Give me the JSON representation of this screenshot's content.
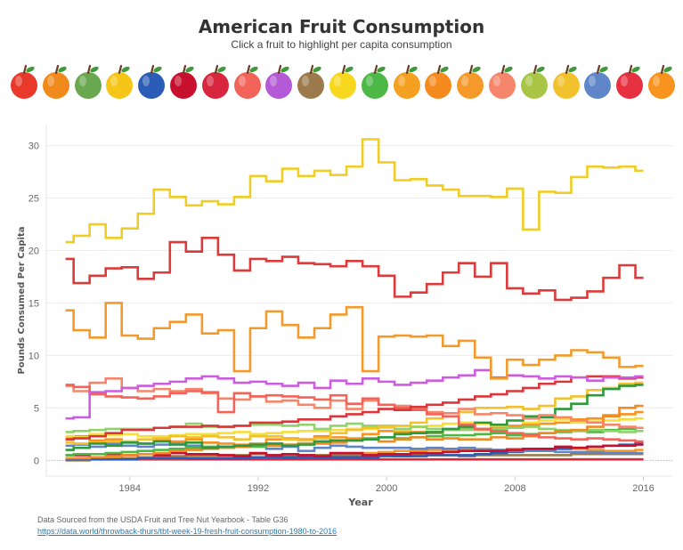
{
  "header": {
    "title": "American Fruit Consumption",
    "subtitle": "Click a fruit to highlight per capita consumption"
  },
  "fruits": [
    {
      "name": "apple-icon",
      "color": "#e8392b"
    },
    {
      "name": "apricot-icon",
      "color": "#f08a1c"
    },
    {
      "name": "avocado-icon",
      "color": "#6aa84f"
    },
    {
      "name": "banana-icon",
      "color": "#f5c518"
    },
    {
      "name": "blueberries-icon",
      "color": "#2b5db8"
    },
    {
      "name": "cherries-icon",
      "color": "#c8102e"
    },
    {
      "name": "cranberries-icon",
      "color": "#d7263d"
    },
    {
      "name": "grapefruit-icon",
      "color": "#f2645a"
    },
    {
      "name": "grapes-icon",
      "color": "#b45ad6"
    },
    {
      "name": "kiwi-icon",
      "color": "#9c7a4b"
    },
    {
      "name": "lemon-icon",
      "color": "#f7d81e"
    },
    {
      "name": "lime-icon",
      "color": "#4cb845"
    },
    {
      "name": "mango-icon",
      "color": "#f4a020"
    },
    {
      "name": "orange-icon",
      "color": "#f58b1f"
    },
    {
      "name": "papaya-icon",
      "color": "#f59a2a"
    },
    {
      "name": "peach-icon",
      "color": "#f5866b"
    },
    {
      "name": "pear-icon",
      "color": "#a8c545"
    },
    {
      "name": "pineapple-icon",
      "color": "#f2c12e"
    },
    {
      "name": "plum-icon",
      "color": "#5f86c9"
    },
    {
      "name": "strawberry-icon",
      "color": "#e83140"
    },
    {
      "name": "tangerine-icon",
      "color": "#f7931e"
    }
  ],
  "chart_data": {
    "type": "line",
    "step": true,
    "title": "American Fruit Consumption",
    "xlabel": "Year",
    "ylabel": "Pounds Consumed Per Capita",
    "xlim": [
      1978.8,
      2017.8
    ],
    "ylim": [
      -1.5,
      32
    ],
    "xticks": [
      1984,
      1992,
      2000,
      2008,
      2016
    ],
    "yticks": [
      0,
      5,
      10,
      15,
      20,
      25,
      30
    ],
    "x": [
      1980,
      1981,
      1982,
      1983,
      1984,
      1985,
      1986,
      1987,
      1988,
      1989,
      1990,
      1991,
      1992,
      1993,
      1994,
      1995,
      1996,
      1997,
      1998,
      1999,
      2000,
      2001,
      2002,
      2003,
      2004,
      2005,
      2006,
      2007,
      2008,
      2009,
      2010,
      2011,
      2012,
      2013,
      2014,
      2015,
      2016
    ],
    "series": [
      {
        "name": "Bananas",
        "color": "#f0cd25",
        "values": [
          20.8,
          21.4,
          22.5,
          21.2,
          22.1,
          23.5,
          25.8,
          25.1,
          24.3,
          24.7,
          24.4,
          25.1,
          27.1,
          26.6,
          27.8,
          27.1,
          27.6,
          27.2,
          28.0,
          30.6,
          28.4,
          26.7,
          26.8,
          26.2,
          25.8,
          25.2,
          25.2,
          25.1,
          25.9,
          22.0,
          25.6,
          25.5,
          27.0,
          28.0,
          27.9,
          28.0,
          27.6
        ]
      },
      {
        "name": "Apples",
        "color": "#dc3b3b",
        "values": [
          19.2,
          16.9,
          17.6,
          18.3,
          18.4,
          17.3,
          17.9,
          20.8,
          19.9,
          21.2,
          19.6,
          18.1,
          19.2,
          19.0,
          19.4,
          18.8,
          18.7,
          18.5,
          19.0,
          18.5,
          17.6,
          15.6,
          16.0,
          16.8,
          17.9,
          18.8,
          17.5,
          18.8,
          16.4,
          15.9,
          16.2,
          15.3,
          15.5,
          16.1,
          17.4,
          18.6,
          17.4
        ]
      },
      {
        "name": "Oranges",
        "color": "#f39a2b",
        "values": [
          14.3,
          12.4,
          11.7,
          15.0,
          11.9,
          11.6,
          12.6,
          13.2,
          13.9,
          12.1,
          12.4,
          8.5,
          12.6,
          14.2,
          12.9,
          11.7,
          12.6,
          13.9,
          14.6,
          8.5,
          11.8,
          11.9,
          11.8,
          11.9,
          10.9,
          11.4,
          9.8,
          7.8,
          9.6,
          9.1,
          9.6,
          10.0,
          10.5,
          10.3,
          9.8,
          8.9,
          9.0
        ]
      },
      {
        "name": "Grapes",
        "color": "#cc5de0",
        "values": [
          4.0,
          4.1,
          6.5,
          6.6,
          6.9,
          7.1,
          7.3,
          7.5,
          7.8,
          8.0,
          7.8,
          7.4,
          7.5,
          7.3,
          7.1,
          7.4,
          6.9,
          7.6,
          7.3,
          7.8,
          7.5,
          7.2,
          7.4,
          7.6,
          7.9,
          8.1,
          8.6,
          7.9,
          8.1,
          8.0,
          7.8,
          8.0,
          7.9,
          7.6,
          7.9,
          7.9,
          8.0
        ]
      },
      {
        "name": "Strawberries",
        "color": "#d9373c",
        "values": [
          2.0,
          2.1,
          2.3,
          2.6,
          2.9,
          2.9,
          3.1,
          3.2,
          3.2,
          3.3,
          3.2,
          3.3,
          3.6,
          3.6,
          3.7,
          3.9,
          3.9,
          4.2,
          4.4,
          4.6,
          4.9,
          4.8,
          5.1,
          5.3,
          5.5,
          5.8,
          6.1,
          6.3,
          6.6,
          6.9,
          7.3,
          7.5,
          7.9,
          8.0,
          8.0,
          7.8,
          7.9
        ]
      },
      {
        "name": "Grapefruit",
        "color": "#f2645a",
        "values": [
          7.2,
          7.0,
          6.3,
          6.1,
          6.0,
          5.9,
          6.1,
          6.4,
          6.6,
          6.5,
          4.6,
          6.4,
          6.1,
          6.2,
          6.1,
          6.0,
          5.8,
          6.2,
          5.4,
          5.9,
          5.3,
          5.0,
          4.8,
          4.4,
          4.2,
          3.4,
          3.0,
          2.8,
          2.6,
          2.4,
          2.2,
          2.1,
          2.0,
          2.1,
          2.0,
          1.9,
          1.8
        ]
      },
      {
        "name": "Peaches",
        "color": "#f5866b",
        "values": [
          7.1,
          6.6,
          7.4,
          7.8,
          6.9,
          6.6,
          6.8,
          6.6,
          6.8,
          6.4,
          5.9,
          5.8,
          6.1,
          5.6,
          5.7,
          5.3,
          5.0,
          5.7,
          4.9,
          5.7,
          5.3,
          5.2,
          4.9,
          4.6,
          4.5,
          4.9,
          4.4,
          4.5,
          4.3,
          4.0,
          4.3,
          4.1,
          3.8,
          3.6,
          3.4,
          3.2,
          3.1
        ]
      },
      {
        "name": "Avocados",
        "color": "#2e9a3c",
        "values": [
          1.0,
          1.2,
          1.6,
          1.4,
          1.7,
          1.6,
          1.8,
          1.5,
          1.7,
          1.2,
          1.3,
          1.4,
          1.5,
          1.6,
          1.4,
          1.5,
          1.8,
          1.9,
          1.9,
          2.0,
          2.2,
          2.5,
          2.6,
          2.7,
          3.0,
          3.2,
          3.6,
          3.4,
          3.8,
          4.2,
          4.1,
          4.9,
          5.4,
          6.2,
          6.8,
          7.1,
          7.2
        ]
      },
      {
        "name": "Pineapple",
        "color": "#f2c12e",
        "values": [
          1.7,
          1.6,
          1.7,
          1.8,
          1.8,
          2.0,
          2.1,
          2.3,
          2.2,
          2.3,
          2.2,
          2.0,
          2.3,
          2.3,
          2.0,
          1.9,
          2.1,
          2.6,
          2.9,
          3.1,
          3.2,
          3.3,
          3.6,
          4.0,
          4.2,
          4.6,
          5.0,
          5.0,
          5.1,
          4.9,
          5.2,
          5.9,
          6.1,
          6.7,
          6.9,
          7.3,
          7.4
        ]
      },
      {
        "name": "Mangoes",
        "color": "#f08a24",
        "values": [
          0.2,
          0.2,
          0.3,
          0.4,
          0.5,
          0.6,
          0.7,
          0.9,
          1.0,
          1.1,
          1.2,
          1.3,
          1.5,
          1.4,
          1.5,
          1.6,
          1.6,
          1.7,
          1.9,
          2.0,
          1.8,
          2.0,
          2.2,
          2.0,
          2.1,
          2.0,
          2.0,
          2.2,
          2.1,
          2.3,
          2.6,
          2.8,
          2.9,
          3.2,
          4.2,
          5.0,
          5.2
        ]
      },
      {
        "name": "Pears",
        "color": "#8fd26a",
        "values": [
          2.7,
          2.8,
          2.9,
          3.0,
          3.0,
          3.0,
          3.1,
          3.2,
          3.5,
          3.2,
          3.2,
          3.3,
          3.4,
          3.4,
          3.3,
          3.4,
          3.0,
          3.3,
          3.5,
          3.3,
          3.3,
          3.0,
          3.2,
          3.0,
          2.9,
          2.9,
          3.0,
          3.0,
          3.1,
          3.2,
          3.0,
          2.9,
          2.8,
          2.9,
          2.8,
          2.7,
          2.8
        ]
      },
      {
        "name": "Lemons",
        "color": "#f7dd3a",
        "values": [
          2.3,
          2.2,
          2.5,
          2.4,
          2.5,
          2.3,
          2.3,
          2.4,
          2.5,
          2.5,
          2.6,
          2.7,
          2.5,
          2.6,
          2.7,
          2.8,
          2.8,
          2.9,
          3.0,
          3.0,
          3.1,
          2.9,
          3.2,
          3.3,
          3.5,
          3.6,
          3.5,
          3.3,
          3.8,
          3.6,
          3.8,
          3.9,
          3.6,
          3.7,
          3.8,
          3.9,
          4.0
        ]
      },
      {
        "name": "Tangerines",
        "color": "#f7931e",
        "values": [
          2.1,
          2.3,
          1.9,
          2.0,
          1.8,
          1.6,
          2.0,
          1.8,
          2.0,
          1.7,
          1.6,
          1.5,
          1.6,
          2.0,
          2.1,
          2.0,
          2.3,
          2.2,
          2.1,
          2.5,
          2.8,
          2.7,
          2.7,
          2.6,
          2.9,
          3.0,
          2.9,
          3.1,
          3.3,
          3.4,
          3.5,
          3.6,
          3.9,
          4.0,
          4.3,
          4.4,
          4.6
        ]
      },
      {
        "name": "Limes",
        "color": "#4cb845",
        "values": [
          0.5,
          0.6,
          0.6,
          0.7,
          0.8,
          0.9,
          1.0,
          1.1,
          1.2,
          1.3,
          1.2,
          1.3,
          1.3,
          1.4,
          1.5,
          1.6,
          1.8,
          1.9,
          1.9,
          2.1,
          2.2,
          2.1,
          2.2,
          2.3,
          2.4,
          2.4,
          2.5,
          2.6,
          2.4,
          2.5,
          2.6,
          2.7,
          2.8,
          2.7,
          2.9,
          3.0,
          3.1
        ]
      },
      {
        "name": "Cherries",
        "color": "#c8102e",
        "values": [
          0.5,
          0.5,
          0.6,
          0.6,
          0.5,
          0.6,
          0.5,
          0.7,
          0.6,
          0.6,
          0.5,
          0.4,
          0.7,
          0.5,
          0.6,
          0.5,
          0.4,
          0.7,
          0.7,
          0.5,
          0.6,
          0.6,
          0.7,
          0.7,
          0.8,
          0.9,
          0.9,
          0.9,
          1.0,
          1.1,
          1.1,
          1.3,
          1.2,
          1.3,
          1.4,
          1.4,
          1.5
        ]
      },
      {
        "name": "Plums",
        "color": "#5f86c9",
        "values": [
          1.4,
          1.5,
          1.3,
          1.6,
          1.4,
          1.3,
          1.5,
          1.6,
          1.4,
          1.7,
          1.3,
          1.3,
          1.5,
          1.1,
          1.3,
          0.9,
          1.2,
          1.4,
          1.3,
          1.2,
          1.2,
          1.2,
          1.1,
          1.2,
          1.1,
          1.2,
          1.0,
          1.0,
          0.9,
          0.9,
          0.9,
          0.8,
          0.8,
          0.8,
          0.7,
          0.7,
          0.7
        ]
      },
      {
        "name": "Blueberries",
        "color": "#2b5db8",
        "values": [
          0.1,
          0.1,
          0.1,
          0.1,
          0.1,
          0.2,
          0.2,
          0.2,
          0.2,
          0.2,
          0.2,
          0.2,
          0.3,
          0.3,
          0.3,
          0.3,
          0.3,
          0.3,
          0.3,
          0.3,
          0.4,
          0.4,
          0.4,
          0.5,
          0.5,
          0.5,
          0.6,
          0.7,
          0.8,
          0.9,
          1.0,
          1.1,
          1.2,
          1.3,
          1.4,
          1.5,
          1.6
        ]
      },
      {
        "name": "Kiwi",
        "color": "#9c7a4b",
        "values": [
          0.0,
          0.0,
          0.1,
          0.1,
          0.2,
          0.3,
          0.4,
          0.4,
          0.5,
          0.5,
          0.5,
          0.5,
          0.6,
          0.5,
          0.5,
          0.5,
          0.5,
          0.5,
          0.5,
          0.5,
          0.5,
          0.4,
          0.5,
          0.5,
          0.5,
          0.4,
          0.5,
          0.5,
          0.5,
          0.5,
          0.5,
          0.5,
          0.6,
          0.6,
          0.6,
          0.6,
          0.6
        ]
      },
      {
        "name": "Papaya",
        "color": "#f59a2a",
        "values": [
          0.1,
          0.1,
          0.1,
          0.2,
          0.2,
          0.2,
          0.2,
          0.2,
          0.3,
          0.3,
          0.3,
          0.3,
          0.3,
          0.3,
          0.4,
          0.4,
          0.5,
          0.5,
          0.6,
          0.7,
          0.8,
          0.9,
          0.9,
          1.0,
          1.0,
          1.1,
          1.1,
          1.0,
          1.1,
          1.0,
          1.0,
          1.1,
          1.1,
          1.0,
          0.9,
          0.9,
          1.0
        ]
      },
      {
        "name": "Cranberries",
        "color": "#d7263d",
        "values": [
          0.1,
          0.1,
          0.1,
          0.1,
          0.1,
          0.1,
          0.1,
          0.1,
          0.1,
          0.1,
          0.1,
          0.1,
          0.1,
          0.1,
          0.1,
          0.1,
          0.1,
          0.1,
          0.1,
          0.1,
          0.1,
          0.1,
          0.1,
          0.1,
          0.1,
          0.1,
          0.1,
          0.1,
          0.1,
          0.1,
          0.1,
          0.1,
          0.1,
          0.1,
          0.1,
          0.1,
          0.1
        ]
      },
      {
        "name": "Apricots",
        "color": "#f3ad4a",
        "values": [
          0.1,
          0.2,
          0.1,
          0.1,
          0.1,
          0.1,
          0.1,
          0.1,
          0.1,
          0.1,
          0.1,
          0.1,
          0.1,
          0.1,
          0.1,
          0.1,
          0.1,
          0.1,
          0.1,
          0.1,
          0.1,
          0.1,
          0.1,
          0.1,
          0.1,
          0.1,
          0.1,
          0.1,
          0.1,
          0.1,
          0.1,
          0.1,
          0.1,
          0.1,
          0.1,
          0.1,
          0.1
        ]
      }
    ]
  },
  "footer": {
    "source": "Data Sourced from the USDA Fruit and Tree Nut Yearbook - Table G36",
    "link": "https://data.world/throwback-thurs/tbt-week-19-fresh-fruit-consumption-1980-to-2016"
  }
}
